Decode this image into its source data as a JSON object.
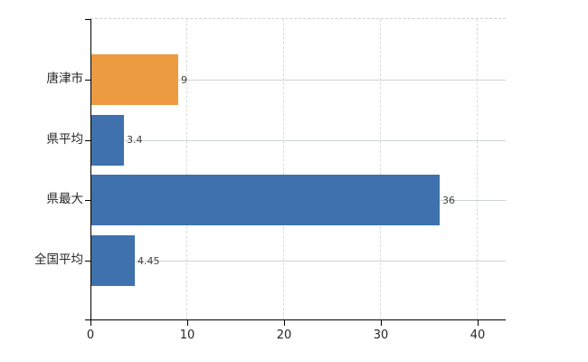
{
  "chart_data": {
    "type": "bar",
    "orientation": "horizontal",
    "title": "",
    "categories": [
      "唐津市",
      "県平均",
      "県最大",
      "全国平均"
    ],
    "values": [
      9,
      3.4,
      36,
      4.45
    ],
    "value_labels": [
      "9",
      "3.4",
      "36",
      "4.45"
    ],
    "bar_colors": [
      "#ec9b41",
      "#3e71ad",
      "#3e71ad",
      "#3e71ad"
    ],
    "xlim": [
      0,
      43
    ],
    "x_ticks": [
      0,
      10,
      20,
      30,
      40
    ],
    "x_tick_labels": [
      "0",
      "10",
      "20",
      "30",
      "40"
    ],
    "grid": "on",
    "legend_position": "none",
    "gridline_style": {
      "horizontal": "solid",
      "vertical": "dashed",
      "top_border": "dashed"
    }
  },
  "colors": {
    "background": "#ffffff",
    "highlight_bar": "#ec9b41",
    "default_bar": "#3e71ad",
    "axis": "#000000",
    "gridline_horizontal": "#cdd5cd",
    "gridline_vertical": "#dadada",
    "plot_top_border": "#cfcfcf",
    "category_text": "#262626",
    "value_text": "#3f3f3f",
    "tick_text": "#262626"
  }
}
